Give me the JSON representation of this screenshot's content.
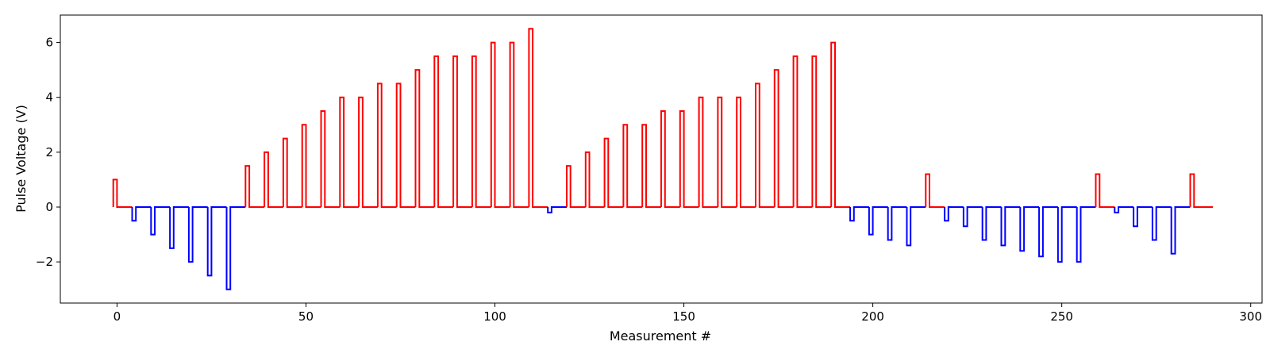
{
  "chart_data": {
    "type": "line",
    "xlabel": "Measurement #",
    "ylabel": "Pulse Voltage (V)",
    "xlim": [
      -15,
      303
    ],
    "ylim": [
      -3.5,
      7.0
    ],
    "x_ticks": [
      0,
      50,
      100,
      150,
      200,
      250,
      300
    ],
    "y_ticks": [
      -2,
      0,
      2,
      4,
      6
    ],
    "y_tick_labels": [
      "−2",
      "0",
      "2",
      "4",
      "6"
    ],
    "grid": false,
    "colors": {
      "positive": "#ff0000",
      "negative": "#0000ff"
    },
    "pulses": [
      {
        "x": 0,
        "v": 1.0
      },
      {
        "x": 5,
        "v": -0.5
      },
      {
        "x": 10,
        "v": -1.0
      },
      {
        "x": 15,
        "v": -1.5
      },
      {
        "x": 20,
        "v": -2.0
      },
      {
        "x": 25,
        "v": -2.5
      },
      {
        "x": 30,
        "v": -3.0
      },
      {
        "x": 35,
        "v": 1.5
      },
      {
        "x": 40,
        "v": 2.0
      },
      {
        "x": 45,
        "v": 2.5
      },
      {
        "x": 50,
        "v": 3.0
      },
      {
        "x": 55,
        "v": 3.5
      },
      {
        "x": 60,
        "v": 4.0
      },
      {
        "x": 65,
        "v": 4.0
      },
      {
        "x": 70,
        "v": 4.5
      },
      {
        "x": 75,
        "v": 4.5
      },
      {
        "x": 80,
        "v": 5.0
      },
      {
        "x": 85,
        "v": 5.5
      },
      {
        "x": 90,
        "v": 5.5
      },
      {
        "x": 95,
        "v": 5.5
      },
      {
        "x": 100,
        "v": 6.0
      },
      {
        "x": 105,
        "v": 6.0
      },
      {
        "x": 110,
        "v": 6.5
      },
      {
        "x": 115,
        "v": -0.2
      },
      {
        "x": 120,
        "v": 1.5
      },
      {
        "x": 125,
        "v": 2.0
      },
      {
        "x": 130,
        "v": 2.5
      },
      {
        "x": 135,
        "v": 3.0
      },
      {
        "x": 140,
        "v": 3.0
      },
      {
        "x": 145,
        "v": 3.5
      },
      {
        "x": 150,
        "v": 3.5
      },
      {
        "x": 155,
        "v": 4.0
      },
      {
        "x": 160,
        "v": 4.0
      },
      {
        "x": 165,
        "v": 4.0
      },
      {
        "x": 170,
        "v": 4.5
      },
      {
        "x": 175,
        "v": 5.0
      },
      {
        "x": 180,
        "v": 5.5
      },
      {
        "x": 185,
        "v": 5.5
      },
      {
        "x": 190,
        "v": 6.0
      },
      {
        "x": 195,
        "v": -0.5
      },
      {
        "x": 200,
        "v": -1.0
      },
      {
        "x": 205,
        "v": -1.2
      },
      {
        "x": 210,
        "v": -1.4
      },
      {
        "x": 215,
        "v": 1.2
      },
      {
        "x": 220,
        "v": -0.5
      },
      {
        "x": 225,
        "v": -0.7
      },
      {
        "x": 230,
        "v": -1.2
      },
      {
        "x": 235,
        "v": -1.4
      },
      {
        "x": 240,
        "v": -1.6
      },
      {
        "x": 245,
        "v": -1.8
      },
      {
        "x": 250,
        "v": -2.0
      },
      {
        "x": 255,
        "v": -2.0
      },
      {
        "x": 260,
        "v": 1.2
      },
      {
        "x": 265,
        "v": -0.2
      },
      {
        "x": 270,
        "v": -0.7
      },
      {
        "x": 275,
        "v": -1.2
      },
      {
        "x": 280,
        "v": -1.7
      },
      {
        "x": 285,
        "v": 1.2
      }
    ],
    "x_end": 290
  }
}
